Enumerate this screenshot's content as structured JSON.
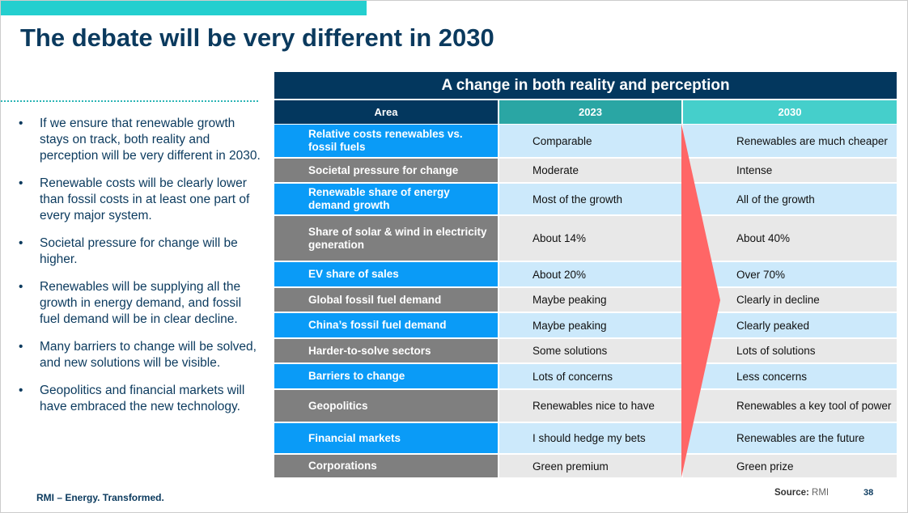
{
  "title": "The debate will be very different in 2030",
  "bullets": [
    "If we ensure that renewable growth stays on track, both reality and perception will be very different in 2030.",
    "Renewable costs will be clearly lower than fossil costs in at least one part of every major system.",
    "Societal pressure for change will be higher.",
    "Renewables will be supplying all the growth in energy demand, and fossil fuel demand will be in clear decline.",
    "Many barriers to change will be solved, and new solutions will be visible.",
    "Geopolitics and financial markets will have embraced the new technology."
  ],
  "table": {
    "title": "A change in both reality and perception",
    "headers": [
      "Area",
      "2023",
      "2030"
    ],
    "rows": [
      [
        "Relative costs renewables vs. fossil fuels",
        "Comparable",
        "Renewables are much cheaper"
      ],
      [
        "Societal pressure for change",
        "Moderate",
        "Intense"
      ],
      [
        "Renewable share of energy demand growth",
        "Most of the growth",
        "All of the growth"
      ],
      [
        "Share of solar & wind in electricity generation",
        "About 14%",
        "About 40%"
      ],
      [
        "EV share of sales",
        "About 20%",
        "Over 70%"
      ],
      [
        "Global fossil fuel demand",
        "Maybe peaking",
        "Clearly in decline"
      ],
      [
        "China’s fossil fuel demand",
        "Maybe peaking",
        "Clearly peaked"
      ],
      [
        "Harder-to-solve sectors",
        "Some solutions",
        "Lots of solutions"
      ],
      [
        "Barriers to change",
        "Lots of concerns",
        "Less concerns"
      ],
      [
        "Geopolitics",
        "Renewables nice to have",
        "Renewables a key tool of power"
      ],
      [
        "Financial markets",
        "I should hedge my bets",
        "Renewables are the future"
      ],
      [
        "Corporations",
        "Green premium",
        "Green prize"
      ]
    ]
  },
  "footer": "RMI – Energy. Transformed.",
  "source_label": "Source:",
  "source_value": "RMI",
  "page_number": "38",
  "colors": {
    "navy": "#03375e",
    "teal": "#24cfcf",
    "blue": "#0a9bf7",
    "gray": "#7f7f7f",
    "arrow": "#ff6666"
  }
}
